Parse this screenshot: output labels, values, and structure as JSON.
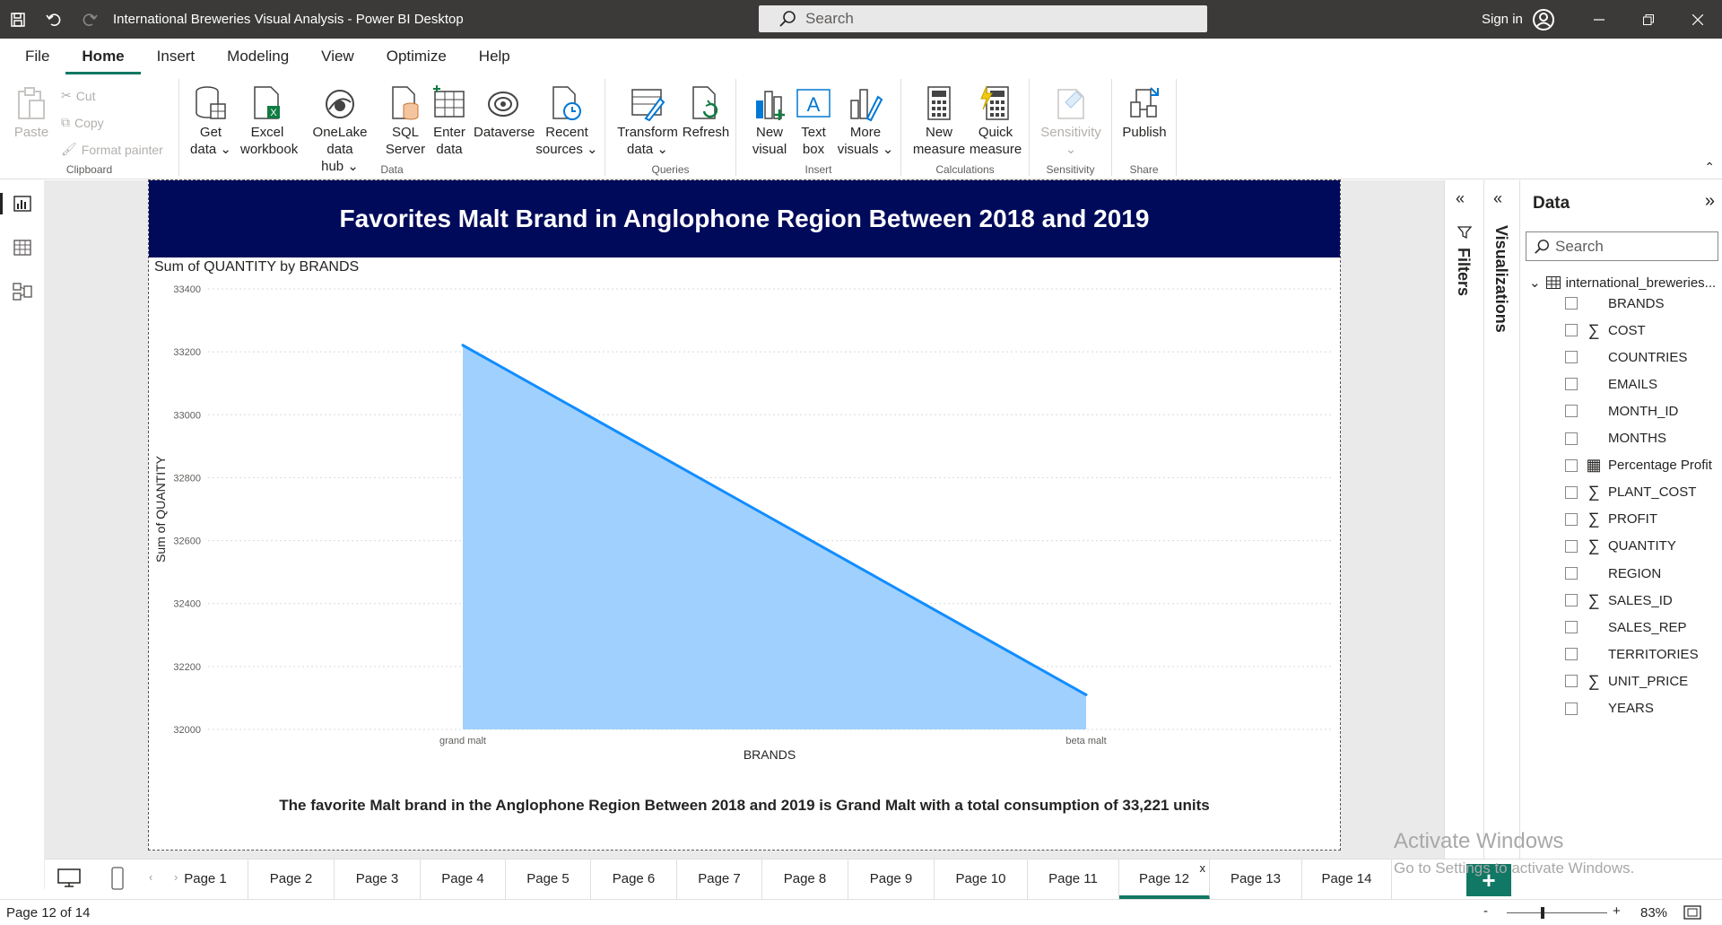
{
  "window": {
    "title": "International Breweries Visual Analysis - Power BI Desktop",
    "search_placeholder": "Search",
    "signin": "Sign in"
  },
  "menu": {
    "tabs": [
      "File",
      "Home",
      "Insert",
      "Modeling",
      "View",
      "Optimize",
      "Help"
    ],
    "active": "Home"
  },
  "ribbon": {
    "clipboard": {
      "paste": "Paste",
      "cut": "Cut",
      "copy": "Copy",
      "format_painter": "Format painter",
      "label": "Clipboard"
    },
    "data": {
      "get_data": [
        "Get",
        "data"
      ],
      "excel": [
        "Excel",
        "workbook"
      ],
      "onelake": [
        "OneLake data",
        "hub"
      ],
      "sql": [
        "SQL",
        "Server"
      ],
      "enter": [
        "Enter",
        "data"
      ],
      "dataverse": [
        "Dataverse",
        ""
      ],
      "recent": [
        "Recent",
        "sources"
      ],
      "label": "Data"
    },
    "queries": {
      "transform": [
        "Transform",
        "data"
      ],
      "refresh": [
        "Refresh",
        ""
      ],
      "label": "Queries"
    },
    "insert": {
      "new_visual": [
        "New",
        "visual"
      ],
      "text_box": [
        "Text",
        "box"
      ],
      "more_visuals": [
        "More",
        "visuals"
      ],
      "label": "Insert"
    },
    "calculations": {
      "new_measure": [
        "New",
        "measure"
      ],
      "quick_measure": [
        "Quick",
        "measure"
      ],
      "label": "Calculations"
    },
    "sensitivity": {
      "button": [
        "Sensitivity",
        ""
      ],
      "label": "Sensitivity"
    },
    "share": {
      "publish": [
        "Publish",
        ""
      ],
      "label": "Share"
    }
  },
  "report": {
    "banner_title": "Favorites Malt Brand in Anglophone Region Between 2018 and 2019",
    "visual_title": "Sum of QUANTITY by BRANDS",
    "summary": "The favorite Malt brand in the Anglophone Region Between 2018 and 2019 is Grand Malt with a total consumption of 33,221 units"
  },
  "chart_data": {
    "type": "area",
    "categories": [
      "grand malt",
      "beta malt"
    ],
    "series": [
      {
        "values": [
          33221,
          32110
        ]
      }
    ],
    "xlabel": "BRANDS",
    "ylabel": "Sum of QUANTITY",
    "ylim": [
      32000,
      33400
    ],
    "yticks": [
      32000,
      32200,
      32400,
      32600,
      32800,
      33000,
      33200,
      33400
    ],
    "grid": true,
    "colors": {
      "line": "#118dff",
      "fill": "#a0d0fd"
    }
  },
  "panes": {
    "filters": "Filters",
    "visualizations": "Visualizations",
    "data": {
      "title": "Data",
      "search_placeholder": "Search",
      "table_name": "international_breweries...",
      "fields": [
        {
          "name": "BRANDS",
          "icon": ""
        },
        {
          "name": "COST",
          "icon": "sigma"
        },
        {
          "name": "COUNTRIES",
          "icon": ""
        },
        {
          "name": "EMAILS",
          "icon": ""
        },
        {
          "name": "MONTH_ID",
          "icon": ""
        },
        {
          "name": "MONTHS",
          "icon": ""
        },
        {
          "name": "Percentage Profit",
          "icon": "table"
        },
        {
          "name": "PLANT_COST",
          "icon": "sigma"
        },
        {
          "name": "PROFIT",
          "icon": "sigma"
        },
        {
          "name": "QUANTITY",
          "icon": "sigma"
        },
        {
          "name": "REGION",
          "icon": ""
        },
        {
          "name": "SALES_ID",
          "icon": "sigma"
        },
        {
          "name": "SALES_REP",
          "icon": ""
        },
        {
          "name": "TERRITORIES",
          "icon": ""
        },
        {
          "name": "UNIT_PRICE",
          "icon": "sigma"
        },
        {
          "name": "YEARS",
          "icon": ""
        }
      ]
    }
  },
  "pages": {
    "tabs": [
      "Page 1",
      "Page 2",
      "Page 3",
      "Page 4",
      "Page 5",
      "Page 6",
      "Page 7",
      "Page 8",
      "Page 9",
      "Page 10",
      "Page 11",
      "Page 12",
      "Page 13",
      "Page 14"
    ],
    "active": "Page 12",
    "close_glyph": "x",
    "add_glyph": "+"
  },
  "watermark": {
    "line1": "Activate Windows",
    "line2": "Go to Settings to activate Windows."
  },
  "status": {
    "page_info": "Page 12 of 14",
    "zoom": "83%",
    "zoom_minus": "-",
    "zoom_plus": "+"
  }
}
